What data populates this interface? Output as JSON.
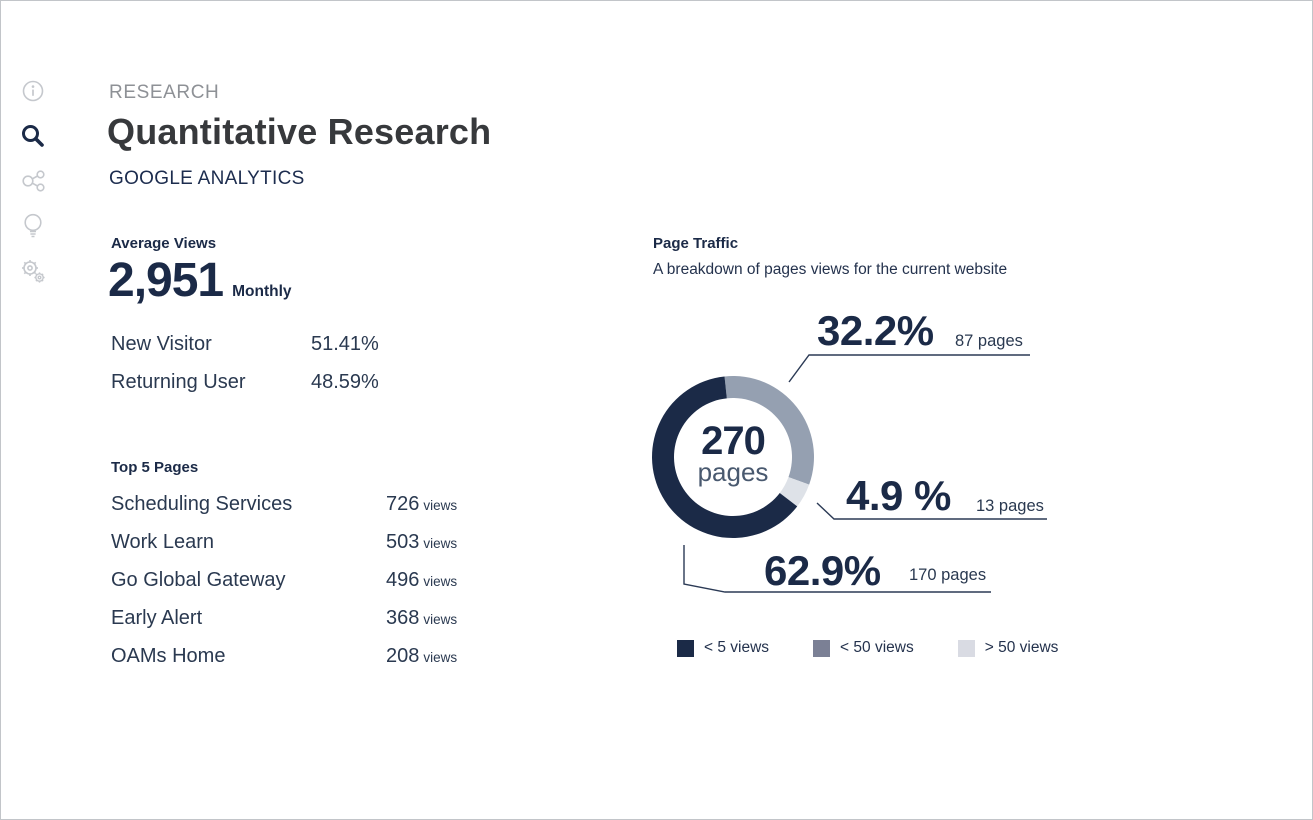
{
  "header": {
    "kicker": "RESEARCH",
    "title": "Quantitative Research",
    "subtitle": "GOOGLE ANALYTICS"
  },
  "sidebar": {
    "items": [
      {
        "icon": "info-icon",
        "active": false
      },
      {
        "icon": "search-icon",
        "active": true
      },
      {
        "icon": "share-icon",
        "active": false
      },
      {
        "icon": "lightbulb-icon",
        "active": false
      },
      {
        "icon": "settings-gears-icon",
        "active": false
      }
    ]
  },
  "average_views": {
    "heading": "Average Views",
    "value": "2,951",
    "period": "Monthly",
    "rows": [
      {
        "label": "New Visitor",
        "value": "51.41%"
      },
      {
        "label": "Returning User",
        "value": "48.59%"
      }
    ]
  },
  "top_pages": {
    "heading": "Top 5 Pages",
    "unit": "views",
    "rows": [
      {
        "label": "Scheduling Services",
        "value": "726"
      },
      {
        "label": "Work Learn",
        "value": "503"
      },
      {
        "label": "Go Global Gateway",
        "value": "496"
      },
      {
        "label": "Early Alert",
        "value": "368"
      },
      {
        "label": "OAMs Home",
        "value": "208"
      }
    ]
  },
  "chart_data": {
    "type": "pie",
    "variant": "donut",
    "title": "Page Traffic",
    "subtitle": "A breakdown of pages views for the current website",
    "center": {
      "value": "270",
      "unit": "pages"
    },
    "total_pages": 270,
    "start_angle_deg": -6,
    "slices": [
      {
        "label": "< 50 views",
        "percent": 32.2,
        "percent_label": "32.2%",
        "pages": 87,
        "pages_label": "87 pages",
        "color": "#95a0b1"
      },
      {
        "label": "> 50 views",
        "percent": 4.9,
        "percent_label": "4.9 %",
        "pages": 13,
        "pages_label": "13 pages",
        "color": "#dee2e8"
      },
      {
        "label": "< 5 views",
        "percent": 62.9,
        "percent_label": "62.9%",
        "pages": 170,
        "pages_label": "170 pages",
        "color": "#1b2a47"
      }
    ],
    "legend_position": "bottom",
    "legend": [
      {
        "label": "< 5 views",
        "color": "#1b2a47"
      },
      {
        "label": "< 50 views",
        "color": "#7b8095"
      },
      {
        "label": "> 50 views",
        "color": "#d9dbe3"
      }
    ]
  },
  "colors": {
    "navy": "#1b2a47",
    "body_text": "#24324d",
    "kicker_gray": "#8e9196",
    "title_charcoal": "#37393c",
    "callout_line": "#2b3a55",
    "page_border": "#c2c5c9",
    "icon_gray": "#c5c8cd"
  }
}
